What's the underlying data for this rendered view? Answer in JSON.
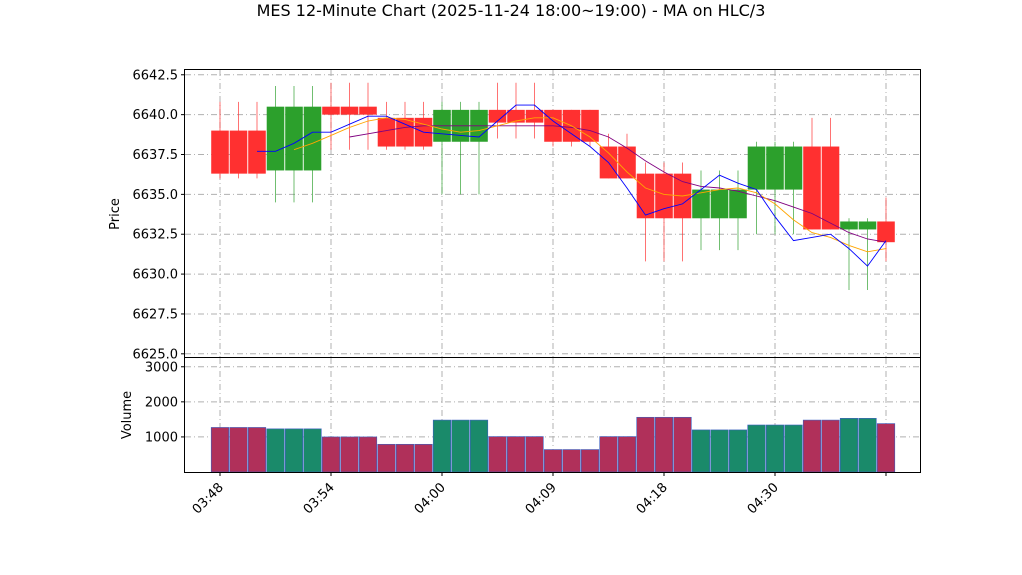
{
  "chart_data": {
    "type": "candlestick",
    "title": "MES 12-Minute Chart (2025-11-24 18:00~19:00) - MA on HLC/3",
    "price_panel": {
      "ylabel": "Price",
      "ylim": [
        6624.8,
        6642.8
      ],
      "yticks": [
        "6625.0",
        "6627.5",
        "6630.0",
        "6632.5",
        "6635.0",
        "6637.5",
        "6640.0",
        "6642.5"
      ],
      "grid": true
    },
    "volume_panel": {
      "ylabel": "Volume",
      "ylim": [
        0,
        3250
      ],
      "yticks": [
        "1000",
        "2000",
        "3000"
      ],
      "grid": true
    },
    "x_ticks": [
      {
        "label": "03:48",
        "at": 0
      },
      {
        "label": "03:54",
        "at": 6
      },
      {
        "label": "04:00",
        "at": 12
      },
      {
        "label": "04:09",
        "at": 18
      },
      {
        "label": "04:18",
        "at": 24
      },
      {
        "label": "04:30",
        "at": 30
      },
      {
        "label": "",
        "at": 36
      }
    ],
    "candles": [
      {
        "o": 6639.0,
        "h": 6640.8,
        "l": 6636.0,
        "c": 6636.3,
        "v": 1270
      },
      {
        "o": 6639.0,
        "h": 6640.8,
        "l": 6636.0,
        "c": 6636.3,
        "v": 1270
      },
      {
        "o": 6639.0,
        "h": 6640.8,
        "l": 6636.0,
        "c": 6636.3,
        "v": 1270
      },
      {
        "o": 6636.5,
        "h": 6641.8,
        "l": 6634.5,
        "c": 6640.5,
        "v": 1230
      },
      {
        "o": 6636.5,
        "h": 6641.8,
        "l": 6634.5,
        "c": 6640.5,
        "v": 1230
      },
      {
        "o": 6636.5,
        "h": 6641.8,
        "l": 6634.5,
        "c": 6640.5,
        "v": 1230
      },
      {
        "o": 6640.5,
        "h": 6642.0,
        "l": 6637.8,
        "c": 6640.0,
        "v": 1000
      },
      {
        "o": 6640.5,
        "h": 6642.0,
        "l": 6637.8,
        "c": 6640.0,
        "v": 1000
      },
      {
        "o": 6640.5,
        "h": 6642.0,
        "l": 6637.8,
        "c": 6640.0,
        "v": 1000
      },
      {
        "o": 6639.8,
        "h": 6640.8,
        "l": 6637.8,
        "c": 6638.0,
        "v": 790
      },
      {
        "o": 6639.8,
        "h": 6640.8,
        "l": 6637.8,
        "c": 6638.0,
        "v": 790
      },
      {
        "o": 6639.8,
        "h": 6640.8,
        "l": 6637.8,
        "c": 6638.0,
        "v": 790
      },
      {
        "o": 6638.3,
        "h": 6640.8,
        "l": 6635.0,
        "c": 6640.3,
        "v": 1480
      },
      {
        "o": 6638.3,
        "h": 6640.8,
        "l": 6635.0,
        "c": 6640.3,
        "v": 1480
      },
      {
        "o": 6638.3,
        "h": 6640.8,
        "l": 6635.0,
        "c": 6640.3,
        "v": 1480
      },
      {
        "o": 6640.3,
        "h": 6642.0,
        "l": 6638.5,
        "c": 6639.5,
        "v": 1010
      },
      {
        "o": 6640.3,
        "h": 6642.0,
        "l": 6638.5,
        "c": 6639.5,
        "v": 1010
      },
      {
        "o": 6640.3,
        "h": 6642.0,
        "l": 6638.5,
        "c": 6639.5,
        "v": 1010
      },
      {
        "o": 6640.3,
        "h": 6640.3,
        "l": 6638.0,
        "c": 6638.3,
        "v": 640
      },
      {
        "o": 6640.3,
        "h": 6640.3,
        "l": 6638.0,
        "c": 6638.3,
        "v": 640
      },
      {
        "o": 6640.3,
        "h": 6640.3,
        "l": 6638.0,
        "c": 6638.3,
        "v": 640
      },
      {
        "o": 6638.0,
        "h": 6638.8,
        "l": 6636.0,
        "c": 6636.0,
        "v": 1010
      },
      {
        "o": 6638.0,
        "h": 6638.8,
        "l": 6636.0,
        "c": 6636.0,
        "v": 1010
      },
      {
        "o": 6636.3,
        "h": 6637.0,
        "l": 6630.8,
        "c": 6633.5,
        "v": 1560
      },
      {
        "o": 6636.3,
        "h": 6637.0,
        "l": 6630.8,
        "c": 6633.5,
        "v": 1560
      },
      {
        "o": 6636.3,
        "h": 6637.0,
        "l": 6630.8,
        "c": 6633.5,
        "v": 1560
      },
      {
        "o": 6633.5,
        "h": 6636.5,
        "l": 6631.5,
        "c": 6635.3,
        "v": 1200
      },
      {
        "o": 6633.5,
        "h": 6636.5,
        "l": 6631.5,
        "c": 6635.3,
        "v": 1200
      },
      {
        "o": 6633.5,
        "h": 6636.5,
        "l": 6631.5,
        "c": 6635.3,
        "v": 1200
      },
      {
        "o": 6635.3,
        "h": 6638.3,
        "l": 6632.5,
        "c": 6638.0,
        "v": 1340
      },
      {
        "o": 6635.3,
        "h": 6638.3,
        "l": 6632.5,
        "c": 6638.0,
        "v": 1340
      },
      {
        "o": 6635.3,
        "h": 6638.3,
        "l": 6632.5,
        "c": 6638.0,
        "v": 1340
      },
      {
        "o": 6638.0,
        "h": 6639.8,
        "l": 6632.8,
        "c": 6632.8,
        "v": 1480
      },
      {
        "o": 6638.0,
        "h": 6639.8,
        "l": 6632.8,
        "c": 6632.8,
        "v": 1480
      },
      {
        "o": 6632.8,
        "h": 6633.5,
        "l": 6629.0,
        "c": 6633.3,
        "v": 1530
      },
      {
        "o": 6632.8,
        "h": 6633.5,
        "l": 6629.0,
        "c": 6633.3,
        "v": 1530
      },
      {
        "o": 6633.3,
        "h": 6634.8,
        "l": 6630.8,
        "c": 6632.0,
        "v": 1380
      }
    ],
    "ma_fast": {
      "color": "#0000ff",
      "values": [
        null,
        null,
        6637.7,
        6637.7,
        6638.2,
        6638.9,
        6638.9,
        6639.4,
        6639.9,
        6639.9,
        6639.4,
        6638.9,
        6638.8,
        6638.7,
        6638.6,
        6639.6,
        6640.6,
        6640.6,
        6639.6,
        6638.8,
        6638.0,
        6637.0,
        6635.4,
        6633.7,
        6634.1,
        6634.4,
        6635.3,
        6636.2,
        6635.7,
        6635.3,
        6633.6,
        6632.1,
        6632.3,
        6632.5,
        6631.6,
        6630.5,
        6632.1
      ]
    },
    "ma_mid": {
      "color": "#ffa500",
      "values": [
        null,
        null,
        null,
        null,
        6637.8,
        6638.2,
        6638.7,
        6639.2,
        6639.6,
        6639.8,
        6639.7,
        6639.4,
        6639.1,
        6638.9,
        6639.0,
        6639.3,
        6639.6,
        6639.8,
        6639.8,
        6639.3,
        6638.6,
        6637.6,
        6636.4,
        6635.4,
        6635.0,
        6634.9,
        6635.1,
        6635.3,
        6635.4,
        6635.1,
        6634.4,
        6633.4,
        6632.6,
        6632.3,
        6631.8,
        6631.4,
        6631.6
      ]
    },
    "ma_slow": {
      "color": "#800080",
      "values": [
        null,
        null,
        null,
        null,
        null,
        null,
        null,
        6638.6,
        6638.8,
        6639.0,
        6639.2,
        6639.3,
        6639.3,
        6639.3,
        6639.3,
        6639.3,
        6639.3,
        6639.3,
        6639.3,
        6639.2,
        6639.0,
        6638.6,
        6637.9,
        6637.1,
        6636.4,
        6635.8,
        6635.5,
        6635.4,
        6635.2,
        6634.9,
        6634.6,
        6634.2,
        6633.8,
        6633.2,
        6632.6,
        6632.2,
        6632.0
      ]
    }
  }
}
